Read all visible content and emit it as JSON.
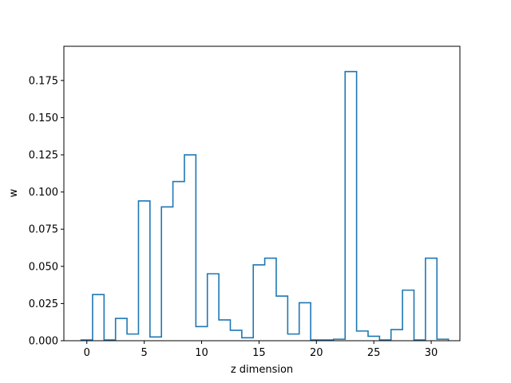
{
  "chart_data": {
    "type": "line",
    "style": "step-histogram",
    "xlabel": "z dimension",
    "ylabel": "w",
    "xlim": [
      -2.0,
      32.5
    ],
    "ylim": [
      0,
      0.198
    ],
    "xticks": [
      0,
      5,
      10,
      15,
      20,
      25,
      30
    ],
    "xtick_labels": [
      "0",
      "5",
      "10",
      "15",
      "20",
      "25",
      "30"
    ],
    "yticks": [
      0.0,
      0.025,
      0.05,
      0.075,
      0.1,
      0.125,
      0.15,
      0.175
    ],
    "ytick_labels": [
      "0.000",
      "0.025",
      "0.050",
      "0.075",
      "0.100",
      "0.125",
      "0.150",
      "0.175"
    ],
    "grid": false,
    "series": [
      {
        "color": "#1f77b4",
        "x": [
          0,
          1,
          2,
          3,
          4,
          5,
          6,
          7,
          8,
          9,
          10,
          11,
          12,
          13,
          14,
          15,
          16,
          17,
          18,
          19,
          20,
          21,
          22,
          23,
          24,
          25,
          26,
          27,
          28,
          29,
          30,
          31
        ],
        "values": [
          0.0005,
          0.031,
          0.0005,
          0.015,
          0.0045,
          0.094,
          0.0025,
          0.09,
          0.107,
          0.125,
          0.0095,
          0.045,
          0.014,
          0.007,
          0.002,
          0.051,
          0.0555,
          0.03,
          0.0045,
          0.0255,
          0.0005,
          0.0005,
          0.001,
          0.181,
          0.0065,
          0.003,
          0.0005,
          0.0075,
          0.034,
          0.0005,
          0.0555,
          0.001
        ]
      }
    ]
  }
}
